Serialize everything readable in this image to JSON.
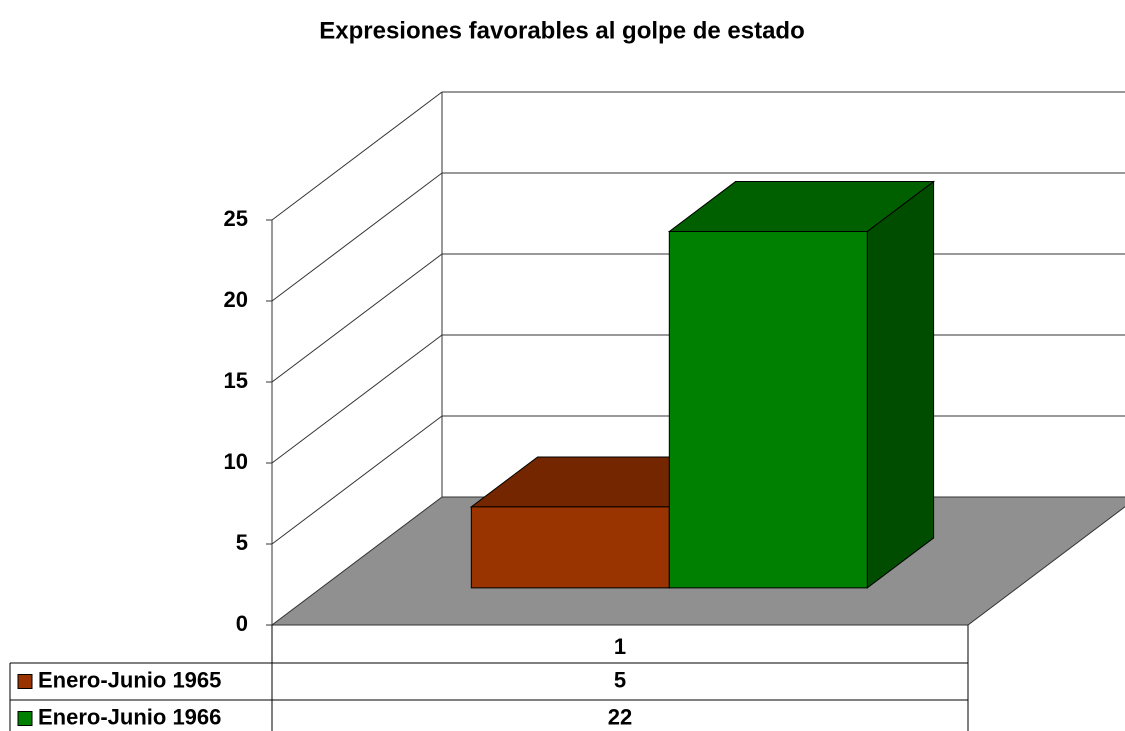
{
  "chart_data": {
    "type": "bar3d",
    "title": "Expresiones favorables al golpe de estado",
    "categories": [
      "1"
    ],
    "series": [
      {
        "name": "Enero-Junio 1965",
        "color": "#993300",
        "values": [
          5
        ]
      },
      {
        "name": "Enero-Junio 1966",
        "color": "#008000",
        "values": [
          22
        ]
      }
    ],
    "ylim": [
      0,
      25
    ],
    "yticks": [
      0,
      5,
      10,
      15,
      20,
      25
    ],
    "grid": true,
    "legend": "table"
  }
}
